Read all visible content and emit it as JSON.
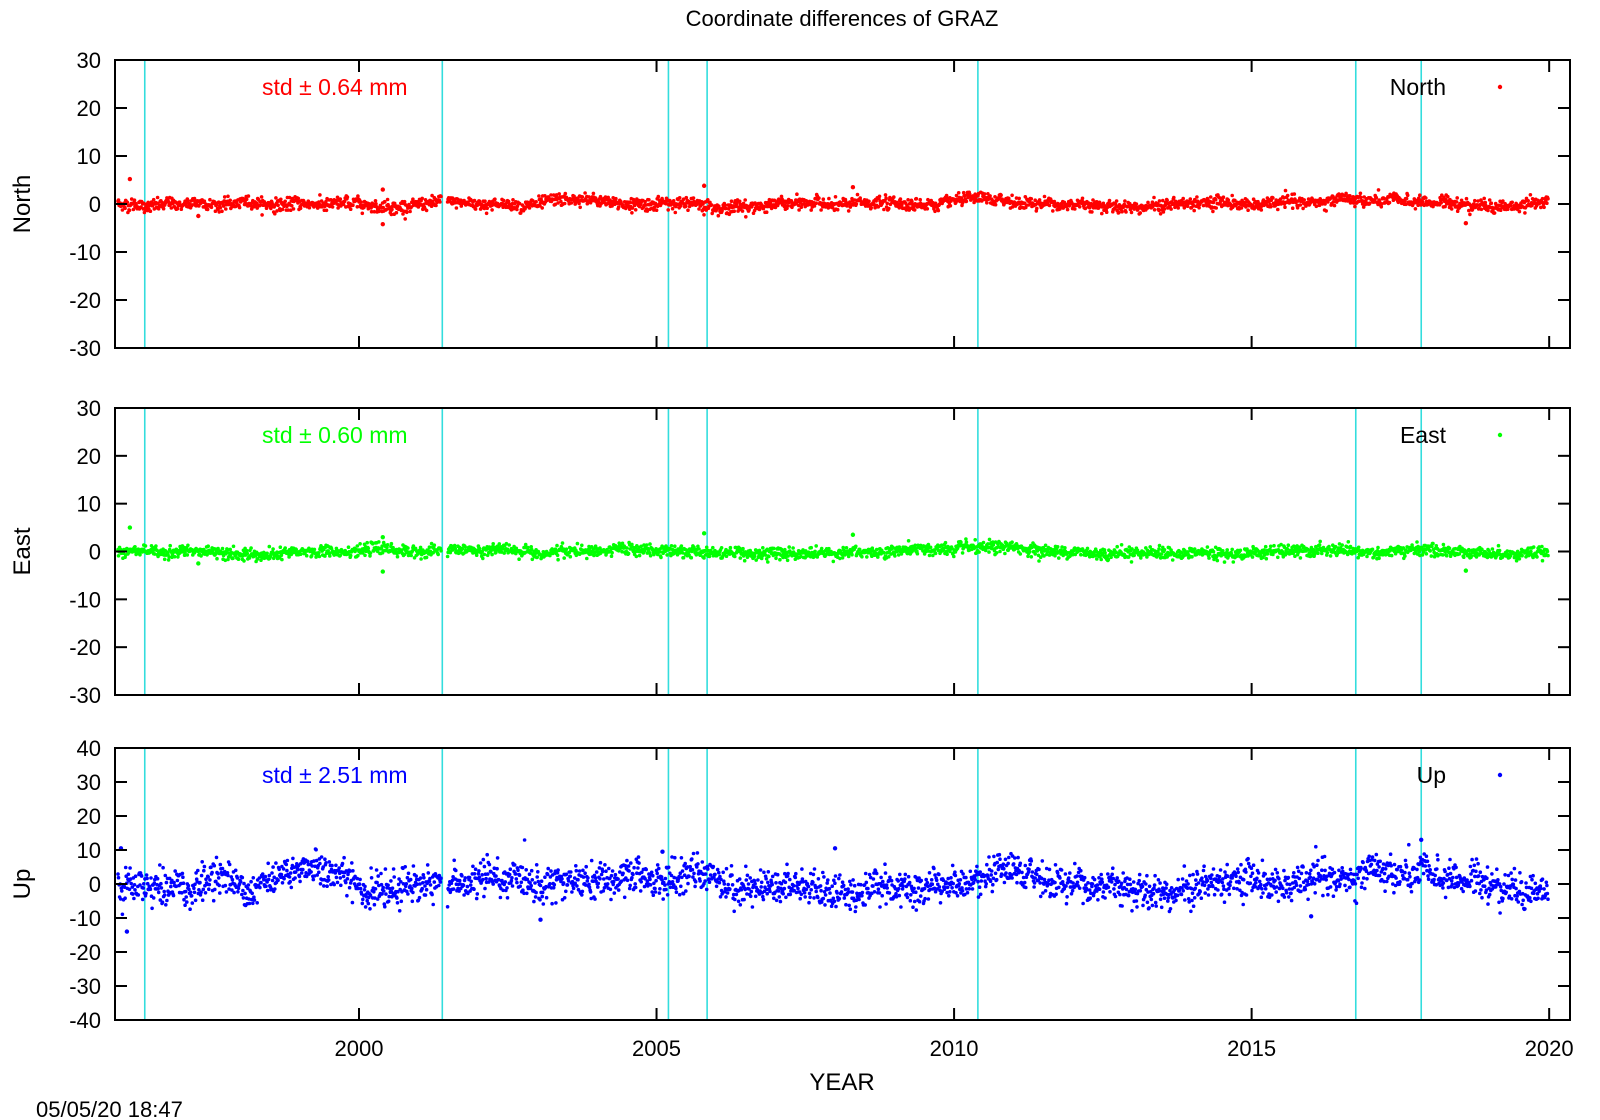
{
  "chart_data": [
    {
      "type": "scatter",
      "title": "Coordinate differences of GRAZ",
      "ylabel": "North",
      "xlim": [
        1995.9,
        2020.35
      ],
      "ylim": [
        -30,
        30
      ],
      "yticks": [
        -30,
        -20,
        -10,
        0,
        10,
        20,
        30
      ],
      "xticks": [
        2000,
        2005,
        2010,
        2015,
        2020
      ],
      "legend": "top-right",
      "std_label": "std ± 0.64 mm",
      "series": [
        {
          "name": "North",
          "color": "#ff0000",
          "std_mm": 0.64,
          "spread": 0.64,
          "outliers": [
            [
              1996.15,
              5.2
            ],
            [
              2000.4,
              3.0
            ],
            [
              2000.4,
              -4.2
            ],
            [
              2005.8,
              3.8
            ],
            [
              2008.3,
              3.5
            ],
            [
              1997.3,
              -2.5
            ],
            [
              2018.6,
              -4.0
            ]
          ]
        }
      ],
      "vlines": [
        1996.4,
        2001.4,
        2005.2,
        2005.85,
        2010.4,
        2016.75,
        2017.85
      ]
    },
    {
      "type": "scatter",
      "ylabel": "East",
      "xlim": [
        1995.9,
        2020.35
      ],
      "ylim": [
        -30,
        30
      ],
      "yticks": [
        -30,
        -20,
        -10,
        0,
        10,
        20,
        30
      ],
      "xticks": [
        2000,
        2005,
        2010,
        2015,
        2020
      ],
      "legend": "top-right",
      "std_label": "std ± 0.60 mm",
      "series": [
        {
          "name": "East",
          "color": "#00ff00",
          "std_mm": 0.6,
          "spread": 0.6,
          "outliers": [
            [
              1996.15,
              5.0
            ],
            [
              2000.4,
              3.0
            ],
            [
              2000.4,
              -4.2
            ],
            [
              2005.8,
              3.8
            ],
            [
              2008.3,
              3.5
            ],
            [
              1997.3,
              -2.5
            ],
            [
              2018.6,
              -4.0
            ]
          ]
        }
      ],
      "vlines": [
        1996.4,
        2001.4,
        2005.2,
        2005.85,
        2010.4,
        2016.75,
        2017.85
      ]
    },
    {
      "type": "scatter",
      "ylabel": "Up",
      "xlabel": "YEAR",
      "xlim": [
        1995.9,
        2020.35
      ],
      "ylim": [
        -40,
        40
      ],
      "yticks": [
        -40,
        -30,
        -20,
        -10,
        0,
        10,
        20,
        30,
        40
      ],
      "xticks": [
        2000,
        2005,
        2010,
        2015,
        2020
      ],
      "legend": "top-right",
      "std_label": "std ± 2.51 mm",
      "series": [
        {
          "name": "Up",
          "color": "#0000ff",
          "std_mm": 2.51,
          "spread": 2.51,
          "outliers": [
            [
              1996.0,
              10.5
            ],
            [
              1996.1,
              -14.0
            ],
            [
              2003.05,
              -10.5
            ],
            [
              2005.1,
              9.5
            ],
            [
              2008.0,
              10.5
            ],
            [
              2017.85,
              13.0
            ],
            [
              2016.0,
              -9.5
            ]
          ]
        }
      ],
      "vlines": [
        1996.4,
        2001.4,
        2005.2,
        2005.85,
        2010.4,
        2016.75,
        2017.85
      ]
    }
  ],
  "footer": {
    "timestamp": "05/05/20 18:47"
  },
  "colors": {
    "event_line": "#33dddd",
    "axis": "#000000"
  }
}
